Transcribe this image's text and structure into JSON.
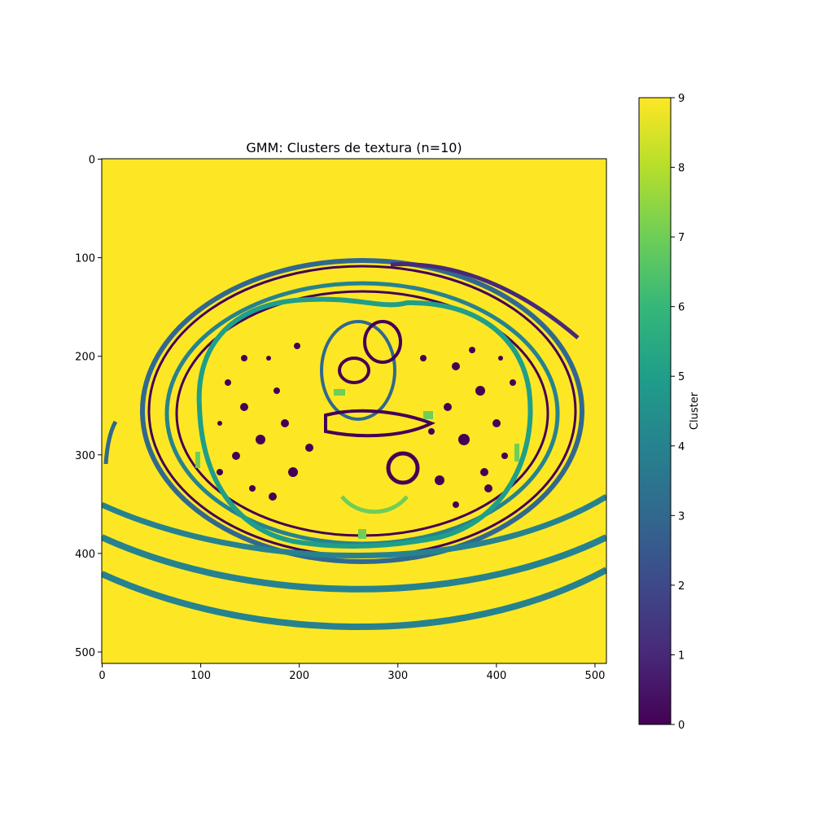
{
  "chart_data": {
    "type": "heatmap",
    "title": "GMM: Clusters de textura (n=10)",
    "image_size": [
      512,
      512
    ],
    "xlim": [
      0,
      512
    ],
    "ylim": [
      512,
      0
    ],
    "x_ticks": [
      0,
      100,
      200,
      300,
      400,
      500
    ],
    "y_ticks": [
      0,
      100,
      200,
      300,
      400,
      500
    ],
    "colormap": "viridis",
    "colorbar": {
      "label": "Cluster",
      "range": [
        0,
        9
      ],
      "ticks": [
        0,
        1,
        2,
        3,
        4,
        5,
        6,
        7,
        8,
        9
      ]
    },
    "background_cluster": 9,
    "grid": false
  },
  "colors": {
    "viridis": [
      "#440154",
      "#482878",
      "#3e4989",
      "#31688e",
      "#26828e",
      "#1f9e89",
      "#35b779",
      "#6ece58",
      "#b5de2b",
      "#fde725"
    ]
  }
}
